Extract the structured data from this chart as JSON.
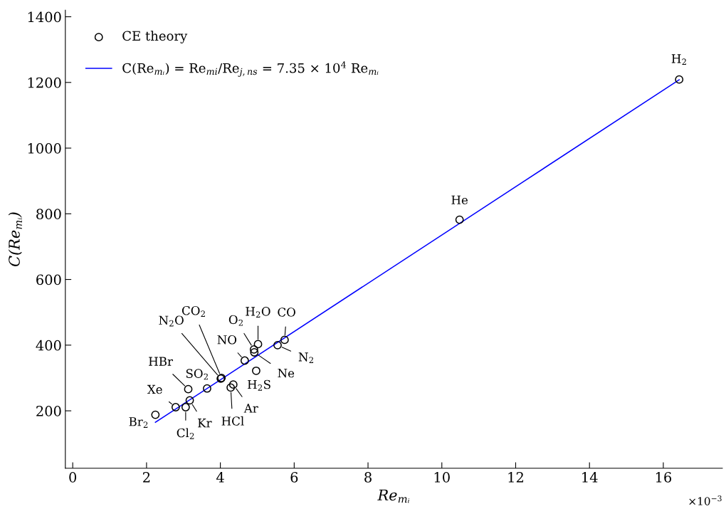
{
  "chart_data": {
    "type": "scatter",
    "xlabel": "Re$_{mᵢ}$",
    "ylabel": "C(Re$_{mᵢ}$)",
    "xlim": [
      -0.2,
      17.6
    ],
    "ylim": [
      25,
      1420
    ],
    "xticks": [
      0,
      2,
      4,
      6,
      8,
      10,
      12,
      14,
      16
    ],
    "yticks": [
      200,
      400,
      600,
      800,
      1000,
      1200,
      1400
    ],
    "grid": false,
    "legend": "top left",
    "series": [
      {
        "name": "CE theory",
        "marker": "circle",
        "color": "#000000",
        "x": [
          2.24,
          2.79,
          3.06,
          3.17,
          3.13,
          3.64,
          4.01,
          4.03,
          4.28,
          4.35,
          4.66,
          4.97,
          4.91,
          4.92,
          5.02,
          5.55,
          5.74,
          10.48,
          16.43
        ],
        "values": [
          188,
          211,
          211,
          232,
          266,
          268,
          298,
          300,
          271,
          280,
          353,
          322,
          387,
          378,
          403,
          400,
          416,
          782,
          1209
        ]
      },
      {
        "name": "C(Re$_{mᵢ}$) = Re$_{mi}$/Re$_{j,ns}$ = 7.35 × 10$^{4}$ Re$_{mᵢ}$",
        "type": "line",
        "marker": "none",
        "line_style": "solid",
        "color": "#0000ff",
        "x": [
          2.24,
          16.43
        ],
        "values": [
          165,
          1208
        ]
      }
    ],
    "annotations": [
      {
        "text": "Br$_{2}$",
        "x": 2.24,
        "y": 188
      },
      {
        "text": "Xe",
        "x": 2.79,
        "y": 211
      },
      {
        "text": "Cl$_{2}$",
        "x": 3.06,
        "y": 211
      },
      {
        "text": "Kr",
        "x": 3.17,
        "y": 232
      },
      {
        "text": "HBr",
        "x": 3.13,
        "y": 266
      },
      {
        "text": "SO$_{2}$",
        "x": 3.64,
        "y": 268
      },
      {
        "text": "N$_{2}$O",
        "x": 4.01,
        "y": 298
      },
      {
        "text": "CO$_{2}$",
        "x": 4.03,
        "y": 300
      },
      {
        "text": "HCl",
        "x": 4.28,
        "y": 271
      },
      {
        "text": "Ar",
        "x": 4.35,
        "y": 280
      },
      {
        "text": "NO",
        "x": 4.66,
        "y": 353
      },
      {
        "text": "H$_{2}$S",
        "x": 4.97,
        "y": 322
      },
      {
        "text": "O$_{2}$",
        "x": 4.91,
        "y": 387
      },
      {
        "text": "Ne",
        "x": 4.92,
        "y": 378
      },
      {
        "text": "H$_{2}$O",
        "x": 5.02,
        "y": 403
      },
      {
        "text": "N$_{2}$",
        "x": 5.55,
        "y": 400
      },
      {
        "text": "CO",
        "x": 5.74,
        "y": 416
      },
      {
        "text": "He",
        "x": 10.48,
        "y": 782
      },
      {
        "text": "H$_{2}$",
        "x": 16.43,
        "y": 1209
      },
      "×10$^{−3}$"
    ]
  }
}
